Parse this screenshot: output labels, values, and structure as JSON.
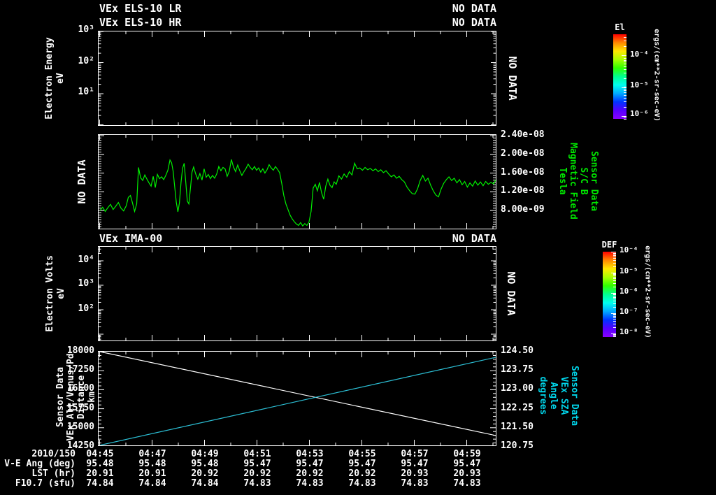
{
  "app": {
    "background": "#000000"
  },
  "colors": {
    "fg": "#ffffff",
    "green_text": "#00e800",
    "cyan_text": "#00d5ea",
    "trace_green": "#00f000",
    "trace_white": "#ffffff",
    "trace_cyan": "#2cc0d6",
    "rainbow": [
      "#ff0000",
      "#ff8800",
      "#ffe800",
      "#a8ff00",
      "#30ff00",
      "#00ff90",
      "#00ffee",
      "#00aaff",
      "#0033ff",
      "#5500ff",
      "#8800ff"
    ]
  },
  "header": {
    "rows": [
      {
        "left": "VEx ELS-10 LR",
        "right": "NO DATA"
      },
      {
        "left": "VEx ELS-10 HR",
        "right": "NO DATA"
      }
    ]
  },
  "panels": {
    "els": {
      "ylabel_lines": [
        "Electron Energy",
        "eV"
      ],
      "yticks": [
        "10³",
        "10²",
        "10¹"
      ],
      "overlay_right": "NO DATA"
    },
    "mag": {
      "overlay_left": "NO DATA",
      "yticks": [
        "2.40e-08",
        "2.00e-08",
        "1.60e-08",
        "1.20e-08",
        "8.00e-09"
      ],
      "right_label_lines": [
        "Sensor Data",
        "S/C B",
        "Magnetic Field",
        "Tesla"
      ]
    },
    "ima": {
      "title": "VEx IMA-00",
      "title_right": "NO DATA",
      "ylabel_lines": [
        "Electron Volts",
        "eV"
      ],
      "yticks": [
        "10⁴",
        "10³",
        "10²"
      ],
      "overlay_right": "NO DATA"
    },
    "eph": {
      "left_label_lines": [
        "Sensor Data",
        "VEx Alt/Venus/Pd",
        "Distance",
        "km"
      ],
      "left_ticks": [
        "18000",
        "17250",
        "16500",
        "15750",
        "15000",
        "14250"
      ],
      "right_ticks": [
        "124.50",
        "123.75",
        "123.00",
        "122.25",
        "121.50",
        "120.75"
      ],
      "right_label_lines": [
        "Sensor Data",
        "VEx SZA",
        "Angle",
        "degrees"
      ]
    }
  },
  "colorbars": [
    {
      "title": "El",
      "tick_labels": [
        "10⁻⁴",
        "10⁻⁵",
        "10⁻⁶"
      ],
      "units": "ergs/(cm**2-sr-sec-eV)"
    },
    {
      "title": "DEF",
      "tick_labels": [
        "10⁻⁴",
        "10⁻⁵",
        "10⁻⁶",
        "10⁻⁷",
        "10⁻⁸"
      ],
      "units": "ergs/(cm**2-sr-sec-eV)"
    }
  ],
  "xaxis": {
    "date": "2010/150",
    "tick_labels": [
      "04:45",
      "04:47",
      "04:49",
      "04:51",
      "04:53",
      "04:55",
      "04:57",
      "04:59"
    ]
  },
  "table": {
    "rows": [
      {
        "label": "V-E Ang (deg)",
        "values": [
          "95.48",
          "95.48",
          "95.48",
          "95.47",
          "95.47",
          "95.47",
          "95.47",
          "95.47"
        ]
      },
      {
        "label": "LST (hr)",
        "values": [
          "20.91",
          "20.91",
          "20.92",
          "20.92",
          "20.92",
          "20.92",
          "20.93",
          "20.93"
        ]
      },
      {
        "label": "F10.7 (sfu)",
        "values": [
          "74.84",
          "74.84",
          "74.84",
          "74.83",
          "74.83",
          "74.83",
          "74.83",
          "74.83"
        ]
      }
    ]
  },
  "chart_data": [
    {
      "panel": 1,
      "type": "heatmap",
      "title": "VEx ELS-10 LR / VEx ELS-10 HR",
      "status": "NO DATA",
      "ylabel": "Electron Energy (eV)",
      "yscale": "log",
      "ytick_values": [
        1000,
        100,
        10
      ],
      "colorbar": {
        "title": "El",
        "units": "ergs/(cm**2-sr-sec-eV)",
        "tick_values": [
          0.0001,
          1e-05,
          1e-06
        ]
      },
      "values": []
    },
    {
      "panel": 2,
      "type": "line",
      "name": "S/C B Magnetic Field",
      "ylabel": "Tesla",
      "legend_lines": [
        "Sensor Data",
        "S/C B",
        "Magnetic Field",
        "Tesla"
      ],
      "ylim": [
        3.8e-09,
        2.4e-08
      ],
      "ytick_values": [
        2.4e-08,
        2e-08,
        1.6e-08,
        1.2e-08,
        8e-09
      ],
      "x_units": "minutes after 04:45",
      "y_units": "1e-9 Tesla",
      "points": [
        [
          0,
          8.0
        ],
        [
          0.1,
          8.7
        ],
        [
          0.2,
          7.8
        ],
        [
          0.3,
          8.6
        ],
        [
          0.4,
          9.3
        ],
        [
          0.5,
          8.2
        ],
        [
          0.6,
          8.9
        ],
        [
          0.7,
          9.7
        ],
        [
          0.8,
          8.5
        ],
        [
          0.9,
          7.9
        ],
        [
          1.0,
          9.0
        ],
        [
          1.08,
          10.8
        ],
        [
          1.16,
          11.2
        ],
        [
          1.24,
          9.6
        ],
        [
          1.32,
          7.8
        ],
        [
          1.4,
          9.4
        ],
        [
          1.47,
          17.2
        ],
        [
          1.55,
          15.0
        ],
        [
          1.63,
          14.4
        ],
        [
          1.71,
          15.6
        ],
        [
          1.79,
          14.7
        ],
        [
          1.87,
          13.9
        ],
        [
          1.95,
          13.2
        ],
        [
          2.03,
          15.3
        ],
        [
          2.11,
          12.9
        ],
        [
          2.19,
          15.7
        ],
        [
          2.27,
          14.8
        ],
        [
          2.35,
          15.2
        ],
        [
          2.43,
          14.6
        ],
        [
          2.51,
          15.5
        ],
        [
          2.59,
          16.6
        ],
        [
          2.67,
          18.8
        ],
        [
          2.73,
          18.2
        ],
        [
          2.79,
          16.4
        ],
        [
          2.85,
          13.0
        ],
        [
          2.91,
          9.8
        ],
        [
          2.97,
          7.7
        ],
        [
          3.03,
          9.6
        ],
        [
          3.09,
          14.0
        ],
        [
          3.15,
          17.0
        ],
        [
          3.21,
          18.1
        ],
        [
          3.27,
          14.2
        ],
        [
          3.33,
          10.0
        ],
        [
          3.39,
          9.4
        ],
        [
          3.45,
          12.8
        ],
        [
          3.51,
          16.2
        ],
        [
          3.57,
          17.3
        ],
        [
          3.65,
          15.8
        ],
        [
          3.73,
          14.7
        ],
        [
          3.81,
          15.9
        ],
        [
          3.89,
          14.5
        ],
        [
          3.97,
          16.9
        ],
        [
          4.05,
          15.1
        ],
        [
          4.13,
          15.7
        ],
        [
          4.21,
          14.8
        ],
        [
          4.29,
          15.5
        ],
        [
          4.37,
          14.9
        ],
        [
          4.45,
          15.8
        ],
        [
          4.53,
          17.4
        ],
        [
          4.61,
          16.5
        ],
        [
          4.69,
          17.2
        ],
        [
          4.77,
          16.9
        ],
        [
          4.85,
          15.3
        ],
        [
          4.93,
          16.4
        ],
        [
          5.01,
          18.9
        ],
        [
          5.09,
          17.3
        ],
        [
          5.17,
          16.3
        ],
        [
          5.25,
          17.7
        ],
        [
          5.33,
          16.5
        ],
        [
          5.41,
          15.5
        ],
        [
          5.49,
          16.3
        ],
        [
          5.57,
          17.0
        ],
        [
          5.65,
          17.9
        ],
        [
          5.73,
          17.2
        ],
        [
          5.81,
          16.7
        ],
        [
          5.89,
          17.4
        ],
        [
          5.97,
          16.6
        ],
        [
          6.05,
          17.1
        ],
        [
          6.13,
          16.2
        ],
        [
          6.21,
          16.9
        ],
        [
          6.29,
          16.0
        ],
        [
          6.37,
          16.7
        ],
        [
          6.45,
          17.8
        ],
        [
          6.53,
          17.1
        ],
        [
          6.61,
          16.6
        ],
        [
          6.69,
          17.4
        ],
        [
          6.77,
          16.8
        ],
        [
          6.85,
          16.1
        ],
        [
          6.93,
          13.8
        ],
        [
          7.01,
          11.2
        ],
        [
          7.09,
          9.4
        ],
        [
          7.17,
          8.2
        ],
        [
          7.25,
          7.0
        ],
        [
          7.33,
          6.2
        ],
        [
          7.41,
          5.6
        ],
        [
          7.49,
          5.1
        ],
        [
          7.57,
          4.8
        ],
        [
          7.65,
          5.4
        ],
        [
          7.73,
          4.7
        ],
        [
          7.81,
          5.2
        ],
        [
          7.89,
          4.8
        ],
        [
          7.97,
          5.5
        ],
        [
          8.05,
          7.8
        ],
        [
          8.13,
          12.8
        ],
        [
          8.21,
          13.6
        ],
        [
          8.29,
          12.2
        ],
        [
          8.37,
          14.0
        ],
        [
          8.45,
          11.8
        ],
        [
          8.53,
          10.4
        ],
        [
          8.61,
          13.2
        ],
        [
          8.69,
          14.7
        ],
        [
          8.77,
          13.4
        ],
        [
          8.85,
          12.9
        ],
        [
          8.93,
          14.1
        ],
        [
          9.01,
          13.6
        ],
        [
          9.11,
          15.4
        ],
        [
          9.21,
          14.7
        ],
        [
          9.31,
          15.8
        ],
        [
          9.41,
          15.1
        ],
        [
          9.51,
          16.3
        ],
        [
          9.61,
          15.6
        ],
        [
          9.71,
          18.1
        ],
        [
          9.81,
          16.9
        ],
        [
          9.91,
          17.1
        ],
        [
          10.01,
          16.6
        ],
        [
          10.11,
          17.2
        ],
        [
          10.21,
          16.7
        ],
        [
          10.31,
          17.0
        ],
        [
          10.41,
          16.5
        ],
        [
          10.51,
          16.9
        ],
        [
          10.61,
          16.3
        ],
        [
          10.71,
          16.7
        ],
        [
          10.81,
          16.1
        ],
        [
          10.91,
          16.5
        ],
        [
          11.01,
          15.8
        ],
        [
          11.11,
          15.2
        ],
        [
          11.21,
          15.6
        ],
        [
          11.31,
          14.9
        ],
        [
          11.41,
          15.3
        ],
        [
          11.51,
          14.6
        ],
        [
          11.61,
          14.1
        ],
        [
          11.71,
          13.0
        ],
        [
          11.81,
          12.2
        ],
        [
          11.91,
          11.6
        ],
        [
          12.01,
          11.5
        ],
        [
          12.11,
          12.6
        ],
        [
          12.21,
          14.4
        ],
        [
          12.31,
          15.5
        ],
        [
          12.41,
          14.3
        ],
        [
          12.51,
          14.9
        ],
        [
          12.61,
          13.4
        ],
        [
          12.71,
          12.2
        ],
        [
          12.81,
          11.3
        ],
        [
          12.91,
          10.9
        ],
        [
          13.01,
          12.6
        ],
        [
          13.11,
          13.8
        ],
        [
          13.21,
          14.6
        ],
        [
          13.31,
          15.2
        ],
        [
          13.41,
          14.4
        ],
        [
          13.51,
          14.9
        ],
        [
          13.61,
          13.9
        ],
        [
          13.71,
          14.6
        ],
        [
          13.81,
          13.5
        ],
        [
          13.91,
          14.2
        ],
        [
          14.01,
          13.0
        ],
        [
          14.11,
          13.9
        ],
        [
          14.21,
          13.2
        ],
        [
          14.31,
          14.3
        ],
        [
          14.41,
          13.4
        ],
        [
          14.51,
          14.1
        ],
        [
          14.61,
          13.3
        ],
        [
          14.71,
          14.2
        ],
        [
          14.81,
          13.6
        ],
        [
          14.91,
          14.0
        ],
        [
          15.01,
          13.7
        ],
        [
          15.1,
          14.6
        ]
      ]
    },
    {
      "panel": 3,
      "type": "heatmap",
      "title": "VEx IMA-00",
      "status": "NO DATA",
      "ylabel": "Electron Volts (eV)",
      "yscale": "log",
      "ytick_values": [
        10000,
        1000,
        100
      ],
      "colorbar": {
        "title": "DEF",
        "units": "ergs/(cm**2-sr-sec-eV)",
        "tick_values": [
          0.0001,
          1e-05,
          1e-06,
          1e-07,
          1e-08
        ]
      },
      "values": []
    },
    {
      "panel": 4,
      "type": "line",
      "xlabel": "2010/150 (hh:mm)",
      "xlim_minutes": [
        0,
        15.2
      ],
      "series": [
        {
          "name": "VEx Alt/Venus/Pd Distance (km)",
          "axis": "left",
          "ylim": [
            14250,
            18000
          ],
          "points": [
            [
              0,
              18000
            ],
            [
              15.1,
              14690
            ]
          ]
        },
        {
          "name": "VEx SZA Angle (degrees)",
          "axis": "right",
          "ylim": [
            120.75,
            124.5
          ],
          "points": [
            [
              0,
              120.81
            ],
            [
              15.1,
              124.28
            ]
          ]
        }
      ]
    }
  ]
}
